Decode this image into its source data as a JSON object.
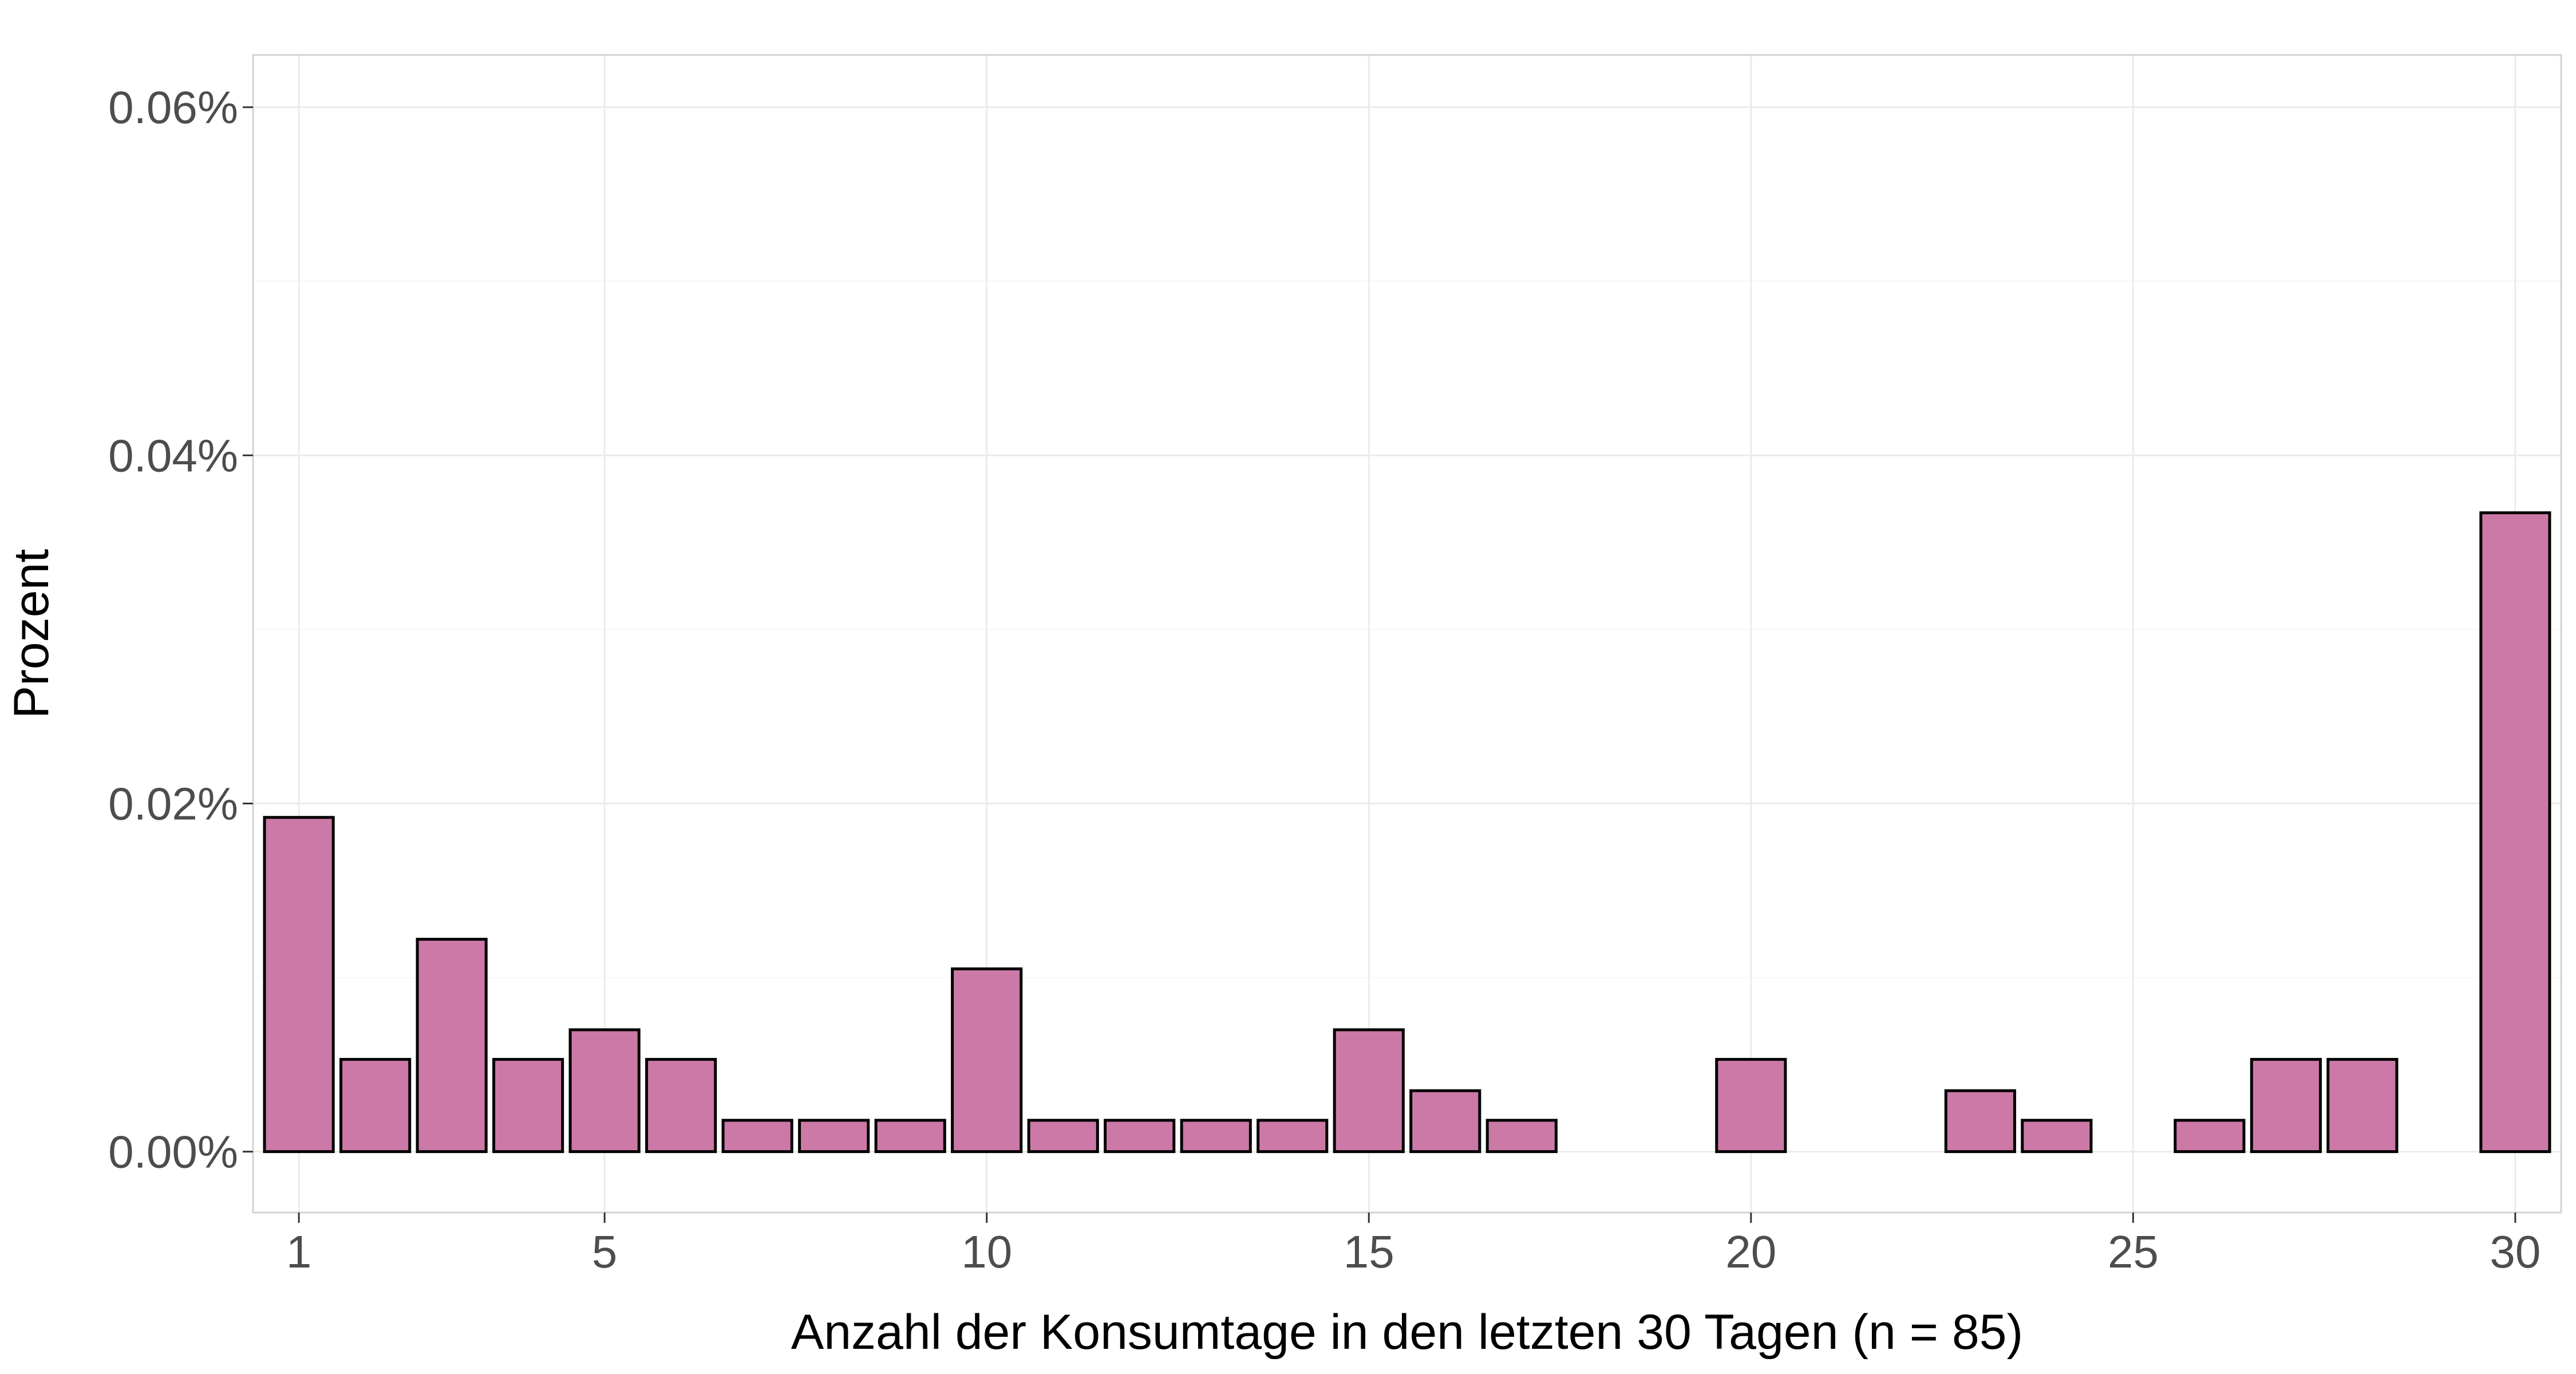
{
  "chart_data": {
    "type": "bar",
    "title": "",
    "xlabel": "Anzahl der Konsumtage in den letzten 30 Tagen (n = 85)",
    "ylabel": "Prozent",
    "ylim": [
      -0.0035,
      0.063
    ],
    "xlim": [
      0.4,
      30.6
    ],
    "x_ticks": [
      1,
      5,
      10,
      15,
      20,
      25,
      30
    ],
    "y_ticks": [
      0.0,
      0.02,
      0.04,
      0.06
    ],
    "y_tick_labels": [
      "0.00%",
      "0.02%",
      "0.04%",
      "0.06%"
    ],
    "grid": true,
    "legend": "none",
    "x": [
      1,
      2,
      3,
      4,
      5,
      6,
      7,
      8,
      9,
      10,
      11,
      12,
      13,
      14,
      15,
      16,
      17,
      20,
      23,
      24,
      26,
      27,
      28,
      30
    ],
    "values": [
      0.0192,
      0.0053,
      0.0122,
      0.0053,
      0.007,
      0.0053,
      0.0018,
      0.0018,
      0.0018,
      0.0105,
      0.0018,
      0.0018,
      0.0018,
      0.0018,
      0.007,
      0.0035,
      0.0018,
      0.0053,
      0.0035,
      0.0018,
      0.0018,
      0.0053,
      0.0053,
      0.0367
    ],
    "colors": {
      "bar_fill": "#CC79A7",
      "bar_outline": "#000000",
      "grid_major": "#EBEBEB",
      "grid_minor": "#F5F5F5",
      "panel_border": "#D3D3D3",
      "tick_text": "#4D4D4D"
    }
  }
}
